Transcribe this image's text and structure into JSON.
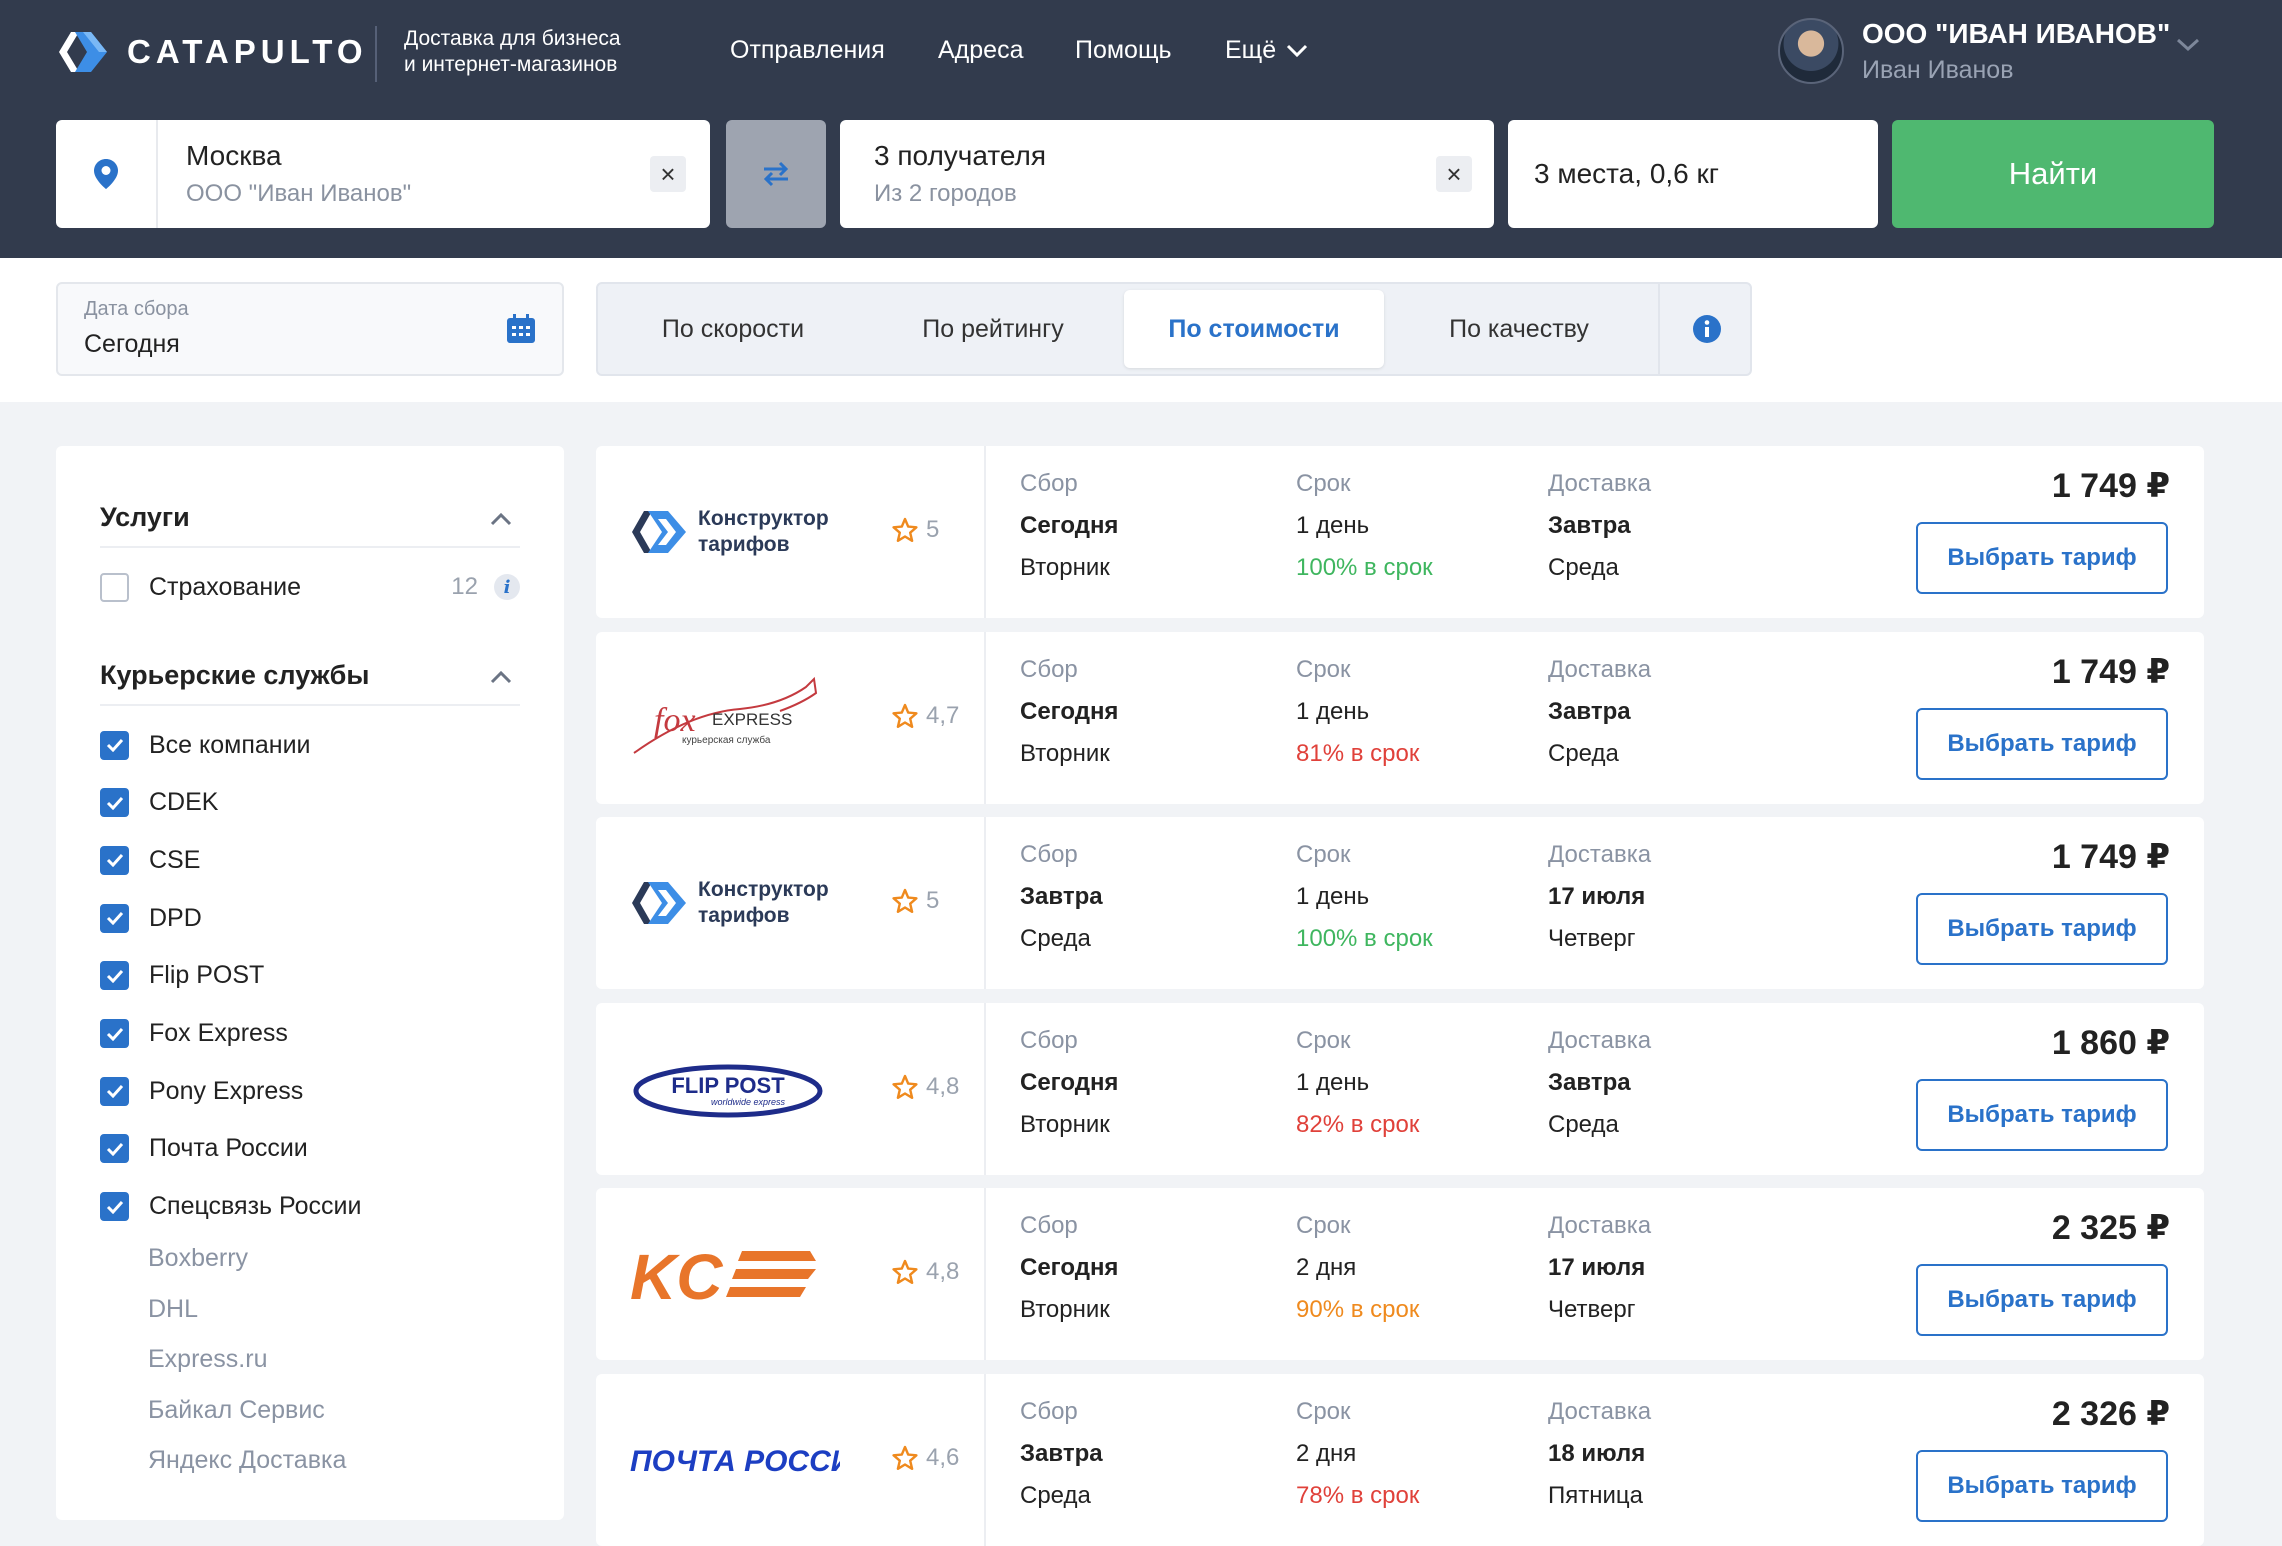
{
  "brand": {
    "name": "CATAPULTO",
    "tagline_1": "Доставка для бизнеса",
    "tagline_2": "и интернет-магазинов"
  },
  "nav": {
    "items": [
      "Отправления",
      "Адреса",
      "Помощь"
    ],
    "more_label": "Ещё"
  },
  "user": {
    "org": "ООО \"ИВАН ИВАНОВ\"",
    "name": "Иван Иванов"
  },
  "search": {
    "from_city": "Москва",
    "from_sub": "ООО \"Иван Иванов\"",
    "to_main": "3 получателя",
    "to_sub": "Из 2 городов",
    "places": "3 места, 0,6 кг",
    "find_label": "Найти",
    "clear_glyph": "×"
  },
  "date": {
    "label": "Дата сбора",
    "value": "Сегодня"
  },
  "sort": {
    "tabs": [
      "По скорости",
      "По рейтингу",
      "По стоимости",
      "По качеству"
    ],
    "active": "По стоимости"
  },
  "filters": {
    "services_title": "Услуги",
    "insurance_label": "Страхование",
    "insurance_count": "12",
    "couriers_title": "Курьерские службы",
    "checked": [
      "Все компании",
      "CDEK",
      "CSE",
      "DPD",
      "Flip POST",
      "Fox Express",
      "Pony Express",
      "Почта России",
      "Спецсвязь России"
    ],
    "unchecked": [
      "Boxberry",
      "DHL",
      "Express.ru",
      "Байкал Сервис",
      "Яндекс Доставка"
    ]
  },
  "labels": {
    "pickup": "Сбор",
    "term": "Срок",
    "delivery": "Доставка",
    "choose": "Выбрать тариф"
  },
  "results": [
    {
      "logo": "konstruktor",
      "logo_line1": "Конструктор",
      "logo_line2": "тарифов",
      "rating": "5",
      "pickup_day": "Сегодня",
      "pickup_weekday": "Вторник",
      "term": "1 день",
      "ontime": "100% в срок",
      "ontime_color": "#3fb65f",
      "delivery_day": "Завтра",
      "delivery_weekday": "Среда",
      "price": "1 749 ₽"
    },
    {
      "logo": "fox",
      "logo_line1": "EXPRESS",
      "logo_line2": "курьерская служба",
      "rating": "4,7",
      "pickup_day": "Сегодня",
      "pickup_weekday": "Вторник",
      "term": "1 день",
      "ontime": "81% в срок",
      "ontime_color": "#e0413a",
      "delivery_day": "Завтра",
      "delivery_weekday": "Среда",
      "price": "1 749 ₽"
    },
    {
      "logo": "konstruktor",
      "logo_line1": "Конструктор",
      "logo_line2": "тарифов",
      "rating": "5",
      "pickup_day": "Завтра",
      "pickup_weekday": "Среда",
      "term": "1 день",
      "ontime": "100% в срок",
      "ontime_color": "#3fb65f",
      "delivery_day": "17 июля",
      "delivery_weekday": "Четверг",
      "price": "1 749 ₽"
    },
    {
      "logo": "flip",
      "logo_line1": "FLIP POST",
      "logo_line2": "worldwide express",
      "rating": "4,8",
      "pickup_day": "Сегодня",
      "pickup_weekday": "Вторник",
      "term": "1 день",
      "ontime": "82% в срок",
      "ontime_color": "#e0413a",
      "delivery_day": "Завтра",
      "delivery_weekday": "Среда",
      "price": "1 860 ₽"
    },
    {
      "logo": "cse",
      "logo_line1": "KC",
      "logo_line2": "",
      "rating": "4,8",
      "pickup_day": "Сегодня",
      "pickup_weekday": "Вторник",
      "term": "2 дня",
      "ontime": "90% в срок",
      "ontime_color": "#ef8a1e",
      "delivery_day": "17 июля",
      "delivery_weekday": "Четверг",
      "price": "2 325 ₽"
    },
    {
      "logo": "pochta",
      "logo_line1": "ПОЧТА РОССИИ",
      "logo_line2": "",
      "rating": "4,6",
      "pickup_day": "Завтра",
      "pickup_weekday": "Среда",
      "term": "2 дня",
      "ontime": "78% в срок",
      "ontime_color": "#e0413a",
      "delivery_day": "18 июля",
      "delivery_weekday": "Пятница",
      "price": "2 326 ₽"
    }
  ],
  "colors": {
    "header_bg": "#323b4d",
    "accent": "#2a72c9",
    "find_green": "#4fb870"
  }
}
